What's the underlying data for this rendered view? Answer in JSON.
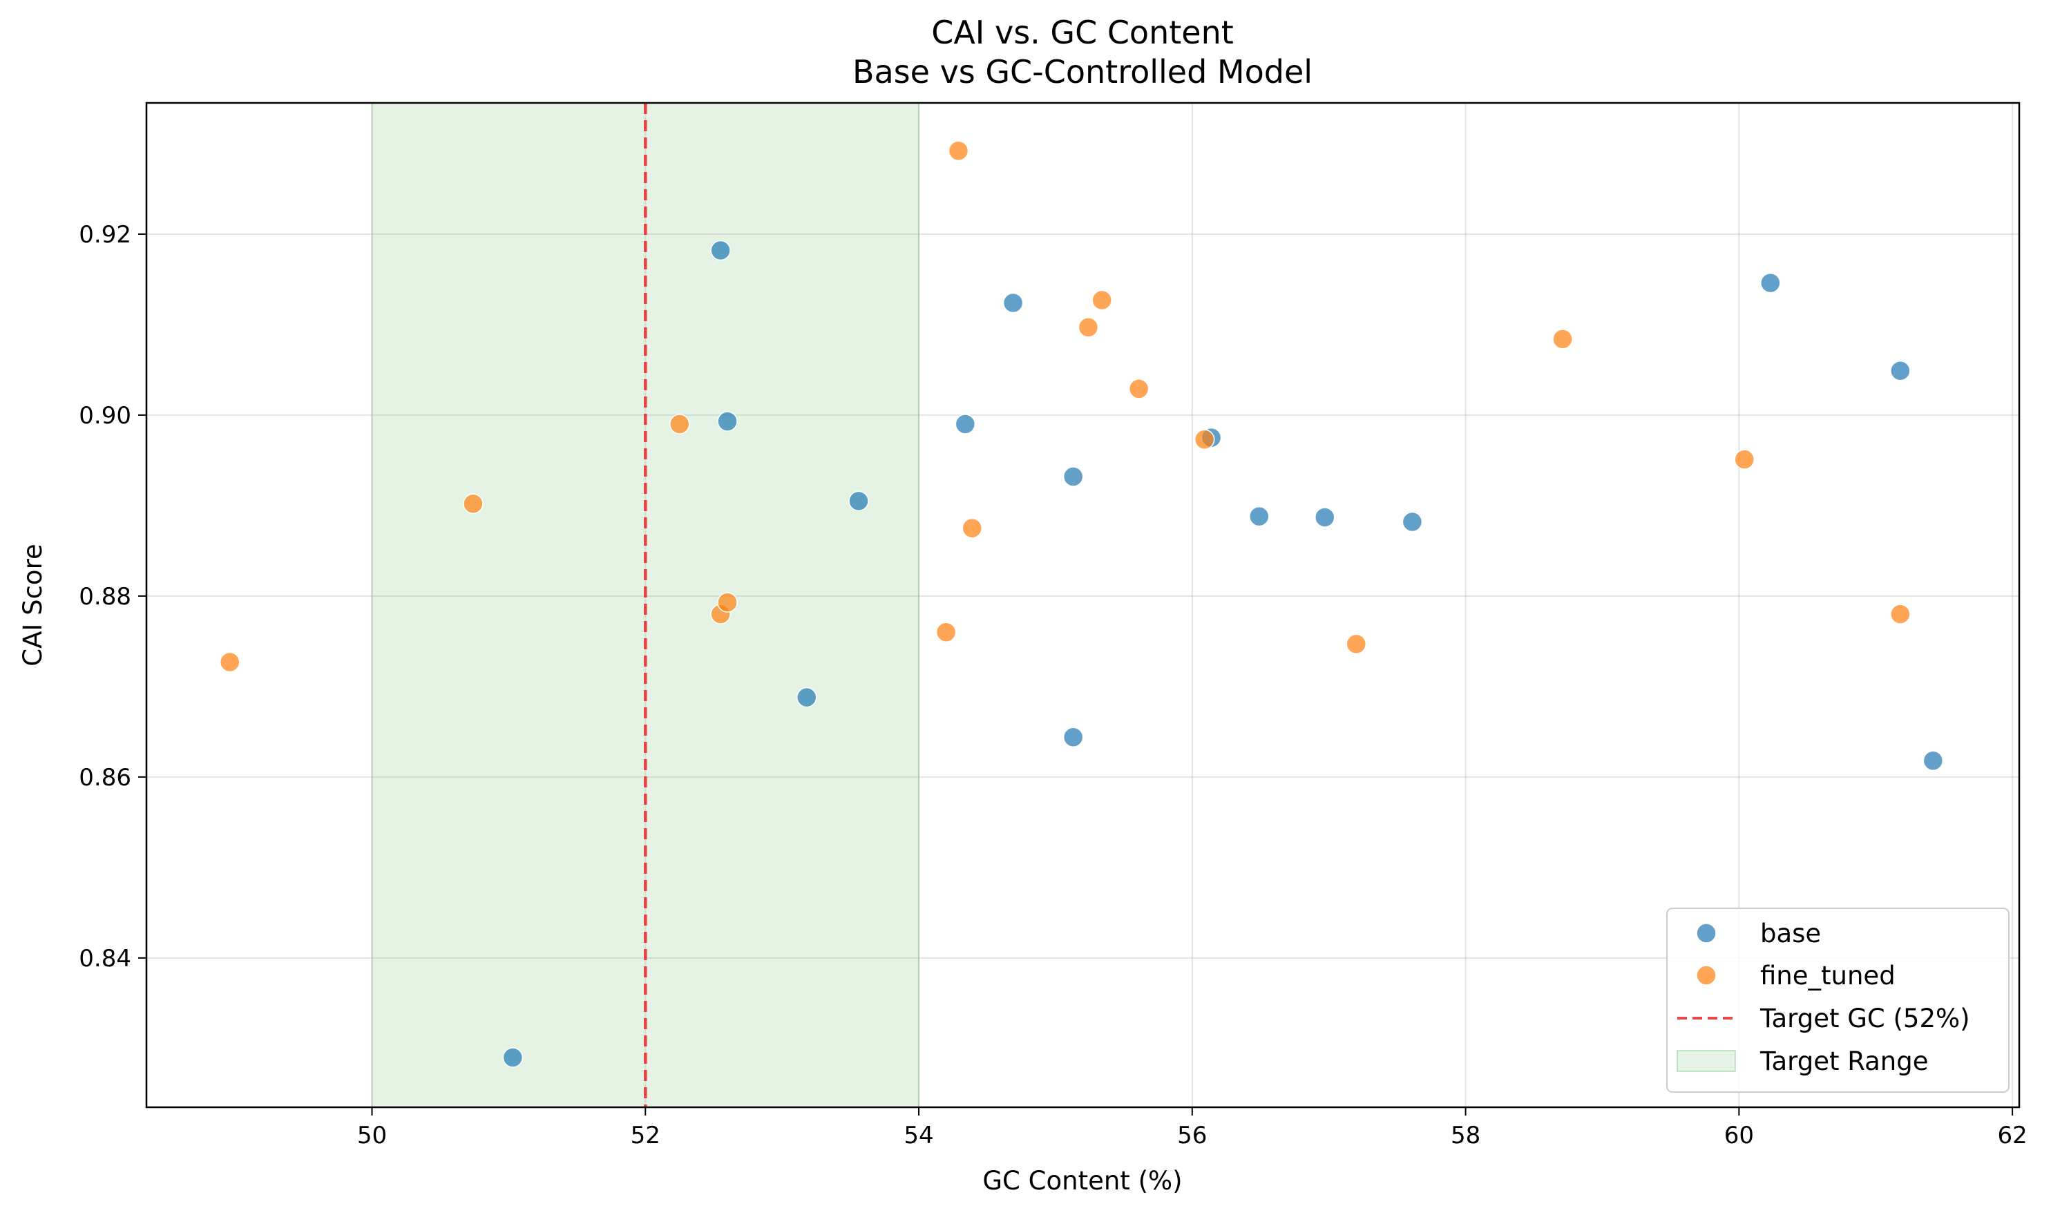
{
  "chart_data": {
    "type": "scatter",
    "title": "CAI vs. GC Content",
    "subtitle": "Base vs GC-Controlled Model",
    "xlabel": "GC Content (%)",
    "ylabel": "CAI Score",
    "xlim": [
      48.35,
      62.05
    ],
    "ylim": [
      0.8235,
      0.9345
    ],
    "xticks": [
      50,
      52,
      54,
      56,
      58,
      60,
      62
    ],
    "yticks": [
      0.84,
      0.86,
      0.88,
      0.9,
      0.92
    ],
    "ytick_labels": [
      "0.84",
      "0.86",
      "0.88",
      "0.90",
      "0.92"
    ],
    "grid": true,
    "legend_position": "lower-right",
    "target_line": {
      "x": 52,
      "label": "Target GC (52%)",
      "color": "#e8262a"
    },
    "target_range": {
      "x0": 50,
      "x1": 54,
      "label": "Target Range",
      "color": "#2ca02c"
    },
    "series": [
      {
        "name": "base",
        "color": "#1f77b4",
        "points": [
          [
            51.03,
            0.829
          ],
          [
            52.55,
            0.9182
          ],
          [
            52.6,
            0.8993
          ],
          [
            53.18,
            0.8688
          ],
          [
            53.56,
            0.8905
          ],
          [
            54.34,
            0.899
          ],
          [
            54.69,
            0.9124
          ],
          [
            55.13,
            0.8932
          ],
          [
            55.13,
            0.8644
          ],
          [
            56.14,
            0.8975
          ],
          [
            56.49,
            0.8888
          ],
          [
            56.97,
            0.8887
          ],
          [
            57.61,
            0.8882
          ],
          [
            60.23,
            0.9146
          ],
          [
            61.18,
            0.9049
          ],
          [
            61.42,
            0.8618
          ]
        ]
      },
      {
        "name": "fine_tuned",
        "color": "#ff7f0e",
        "points": [
          [
            48.96,
            0.8727
          ],
          [
            50.74,
            0.8902
          ],
          [
            52.25,
            0.899
          ],
          [
            52.55,
            0.878
          ],
          [
            52.6,
            0.8793
          ],
          [
            54.2,
            0.876
          ],
          [
            54.29,
            0.9292
          ],
          [
            54.39,
            0.8875
          ],
          [
            55.24,
            0.9097
          ],
          [
            55.34,
            0.9127
          ],
          [
            55.61,
            0.9029
          ],
          [
            56.09,
            0.8973
          ],
          [
            57.2,
            0.8747
          ],
          [
            58.71,
            0.9084
          ],
          [
            60.04,
            0.8951
          ],
          [
            61.18,
            0.878
          ]
        ]
      }
    ]
  }
}
